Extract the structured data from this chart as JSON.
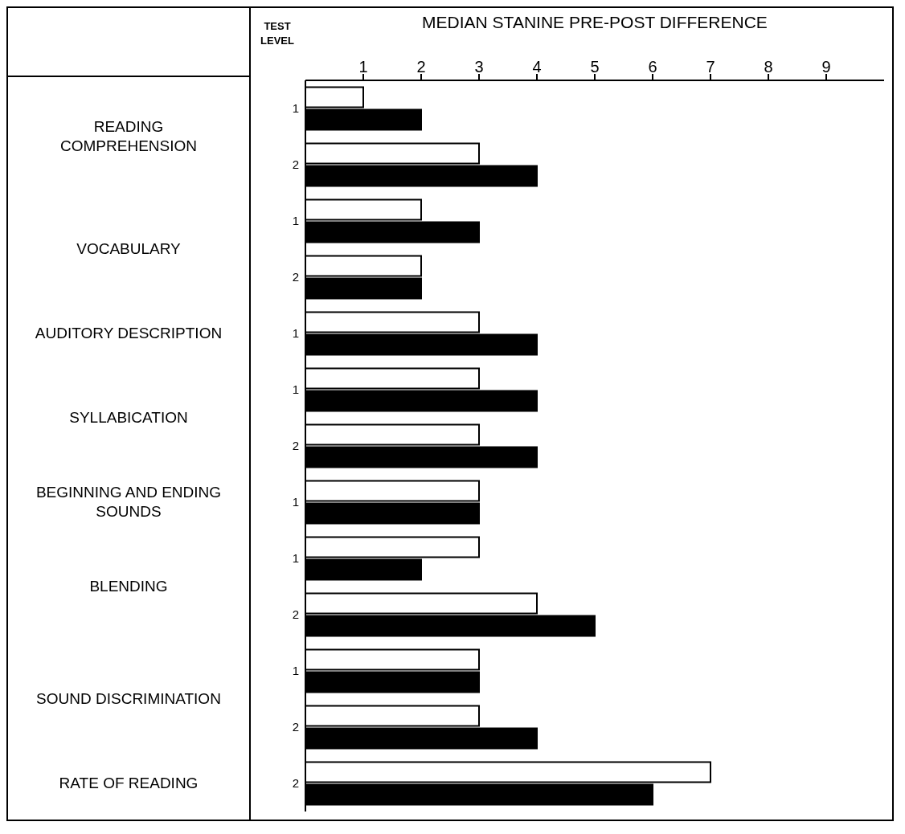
{
  "chart_data": {
    "type": "bar",
    "orientation": "horizontal",
    "xlabel": "MEDIAN STANINE PRE-POST DIFFERENCE",
    "ylabel": "TEST LEVEL",
    "categories": [
      "1",
      "2",
      "1",
      "2",
      "1",
      "1",
      "2",
      "1",
      "1",
      "2",
      "1",
      "2",
      "2"
    ],
    "series": [
      {
        "color": "#ffffff",
        "values": [
          1,
          3,
          2,
          2,
          3,
          3,
          3,
          3,
          3,
          4,
          3,
          3,
          7
        ]
      },
      {
        "color": "#000000",
        "values": [
          2,
          4,
          3,
          2,
          4,
          4,
          4,
          3,
          2,
          5,
          3,
          4,
          6
        ]
      }
    ],
    "xlim": [
      0,
      10
    ],
    "xticks": [
      1,
      2,
      3,
      4,
      5,
      6,
      7,
      8,
      9
    ],
    "grid": false,
    "legend": false,
    "annotations": [
      "READING COMPREHENSION",
      "VOCABULARY",
      "AUDITORY DESCRIPTION",
      "SYLLABICATION",
      "BEGINNING AND ENDING SOUNDS",
      "BLENDING",
      "SOUND DISCRIMINATION",
      "RATE OF READING"
    ]
  }
}
